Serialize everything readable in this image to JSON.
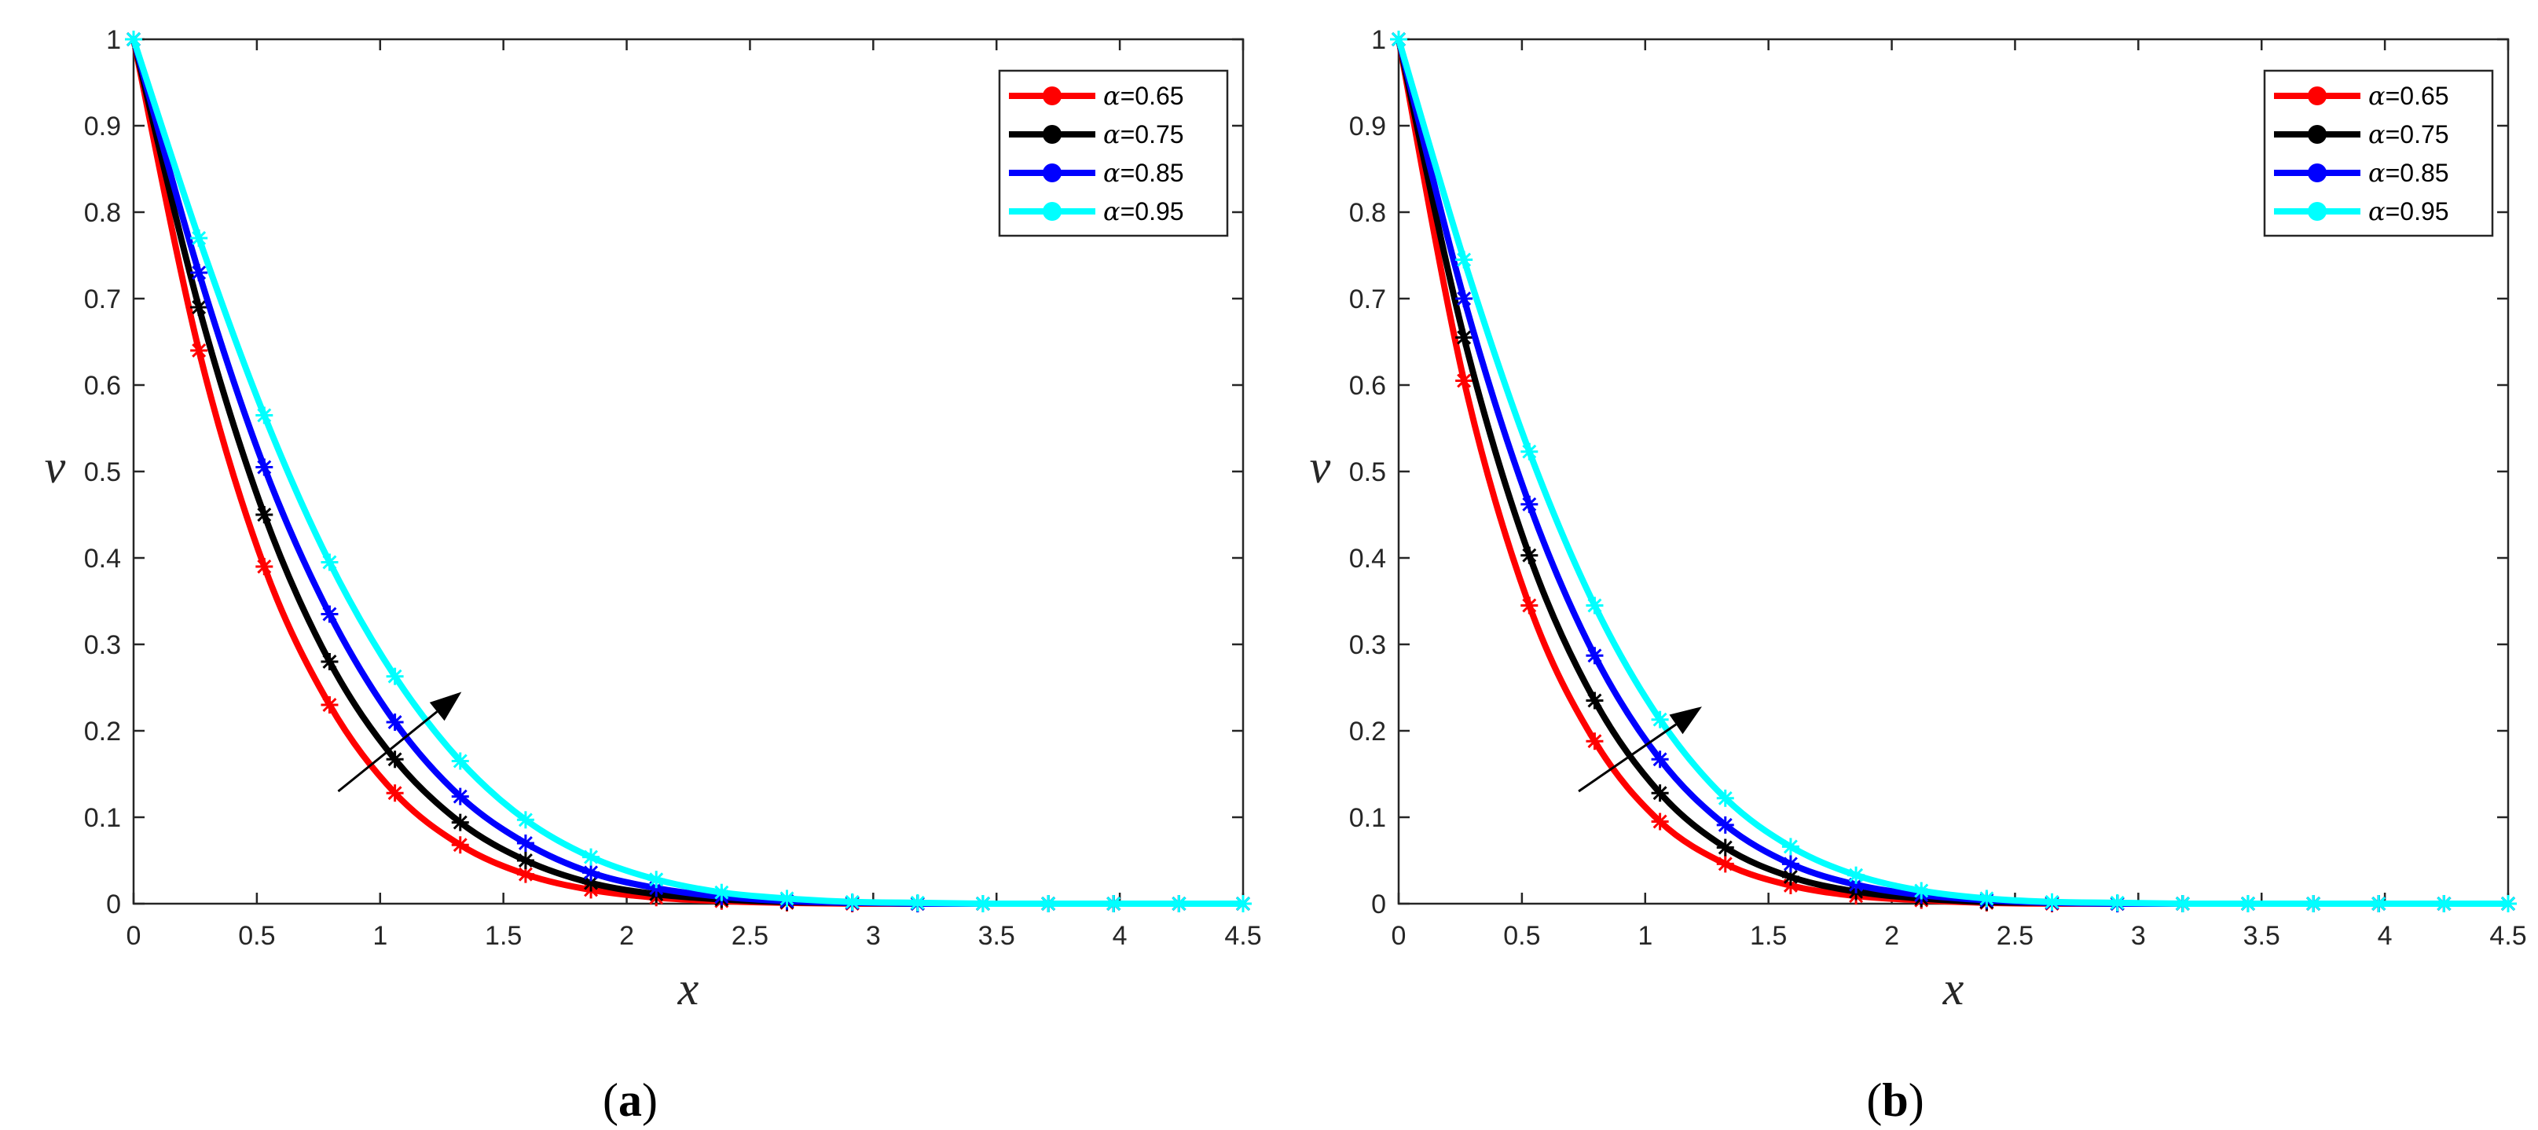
{
  "chart_data": [
    {
      "type": "line",
      "caption": "a",
      "xlabel": "x",
      "ylabel": "v",
      "xlim": [
        0,
        4.5
      ],
      "ylim": [
        0,
        1
      ],
      "xticks": [
        "0",
        "0.5",
        "1",
        "1.5",
        "2",
        "2.5",
        "3",
        "3.5",
        "4",
        "4.5"
      ],
      "yticks": [
        "0",
        "0.1",
        "0.2",
        "0.3",
        "0.4",
        "0.5",
        "0.6",
        "0.7",
        "0.8",
        "0.9",
        "1"
      ],
      "legend_position": "top-right",
      "trend_arrow": {
        "from": [
          0.83,
          0.13
        ],
        "to": [
          1.33,
          0.245
        ]
      },
      "x": [
        0,
        0.265,
        0.53,
        0.795,
        1.06,
        1.325,
        1.59,
        1.855,
        2.12,
        2.385,
        2.65,
        2.915,
        3.18,
        3.445,
        3.71,
        3.975,
        4.24,
        4.5
      ],
      "series": [
        {
          "name": "α=0.65",
          "greek": "α",
          "param": "=0.65",
          "color": "#ff0000",
          "values": [
            1,
            0.64,
            0.39,
            0.23,
            0.128,
            0.068,
            0.034,
            0.016,
            0.007,
            0.003,
            0.001,
            0,
            0,
            0,
            0,
            0,
            0,
            0
          ]
        },
        {
          "name": "α=0.75",
          "greek": "α",
          "param": "=0.75",
          "color": "#000000",
          "values": [
            1,
            0.69,
            0.45,
            0.28,
            0.167,
            0.094,
            0.05,
            0.024,
            0.011,
            0.005,
            0.002,
            0.001,
            0,
            0,
            0,
            0,
            0,
            0
          ]
        },
        {
          "name": "α=0.85",
          "greek": "α",
          "param": "=0.85",
          "color": "#0000ff",
          "values": [
            1,
            0.73,
            0.505,
            0.335,
            0.21,
            0.124,
            0.07,
            0.036,
            0.018,
            0.008,
            0.003,
            0.001,
            0,
            0,
            0,
            0,
            0,
            0
          ]
        },
        {
          "name": "α=0.95",
          "greek": "α",
          "param": "=0.95",
          "color": "#00ffff",
          "values": [
            1,
            0.77,
            0.565,
            0.395,
            0.263,
            0.165,
            0.097,
            0.054,
            0.028,
            0.013,
            0.006,
            0.002,
            0.001,
            0,
            0,
            0,
            0,
            0
          ]
        }
      ]
    },
    {
      "type": "line",
      "caption": "b",
      "xlabel": "x",
      "ylabel": "v",
      "xlim": [
        0,
        4.5
      ],
      "ylim": [
        0,
        1
      ],
      "xticks": [
        "0",
        "0.5",
        "1",
        "1.5",
        "2",
        "2.5",
        "3",
        "3.5",
        "4",
        "4.5"
      ],
      "yticks": [
        "0",
        "0.1",
        "0.2",
        "0.3",
        "0.4",
        "0.5",
        "0.6",
        "0.7",
        "0.8",
        "0.9",
        "1"
      ],
      "legend_position": "top-right",
      "trend_arrow": {
        "from": [
          0.73,
          0.13
        ],
        "to": [
          1.23,
          0.228
        ]
      },
      "x": [
        0,
        0.265,
        0.53,
        0.795,
        1.06,
        1.325,
        1.59,
        1.855,
        2.12,
        2.385,
        2.65,
        2.915,
        3.18,
        3.445,
        3.71,
        3.975,
        4.24,
        4.5
      ],
      "series": [
        {
          "name": "α=0.65",
          "greek": "α",
          "param": "=0.65",
          "color": "#ff0000",
          "values": [
            1,
            0.605,
            0.345,
            0.188,
            0.095,
            0.046,
            0.021,
            0.009,
            0.004,
            0.001,
            0,
            0,
            0,
            0,
            0,
            0,
            0,
            0
          ]
        },
        {
          "name": "α=0.75",
          "greek": "α",
          "param": "=0.75",
          "color": "#000000",
          "values": [
            1,
            0.655,
            0.403,
            0.235,
            0.128,
            0.065,
            0.031,
            0.014,
            0.006,
            0.002,
            0.001,
            0,
            0,
            0,
            0,
            0,
            0,
            0
          ]
        },
        {
          "name": "α=0.85",
          "greek": "α",
          "param": "=0.85",
          "color": "#0000ff",
          "values": [
            1,
            0.7,
            0.462,
            0.287,
            0.167,
            0.091,
            0.046,
            0.022,
            0.01,
            0.004,
            0.001,
            0,
            0,
            0,
            0,
            0,
            0,
            0
          ]
        },
        {
          "name": "α=0.95",
          "greek": "α",
          "param": "=0.95",
          "color": "#00ffff",
          "values": [
            1,
            0.745,
            0.523,
            0.345,
            0.213,
            0.122,
            0.066,
            0.033,
            0.015,
            0.006,
            0.002,
            0.001,
            0,
            0,
            0,
            0,
            0,
            0
          ]
        }
      ]
    }
  ]
}
